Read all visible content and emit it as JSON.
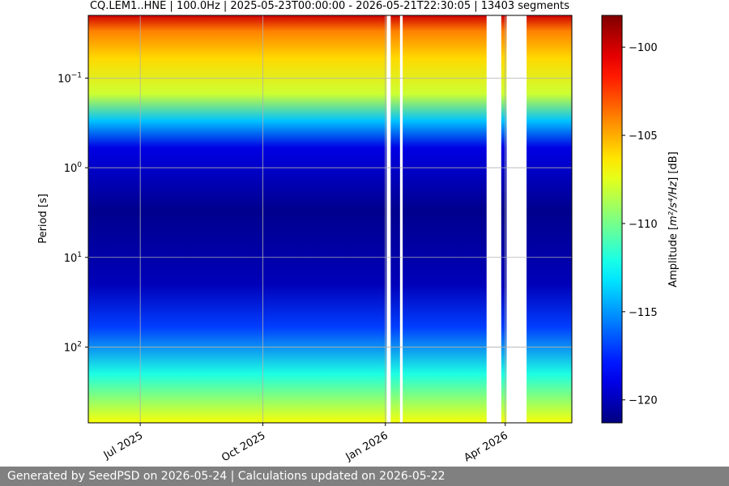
{
  "chart_data": {
    "type": "heatmap",
    "title": "CQ.LEM1..HNE | 100.0Hz | 2025-05-23T00:00:00 - 2026-05-21T22:30:05 | 13403 segments",
    "ylabel": "Period [s]",
    "y_scale": "log",
    "ylim": [
      0.02,
      700
    ],
    "y_ticks": [
      {
        "value": 0.1,
        "base": "10",
        "exp": "−1"
      },
      {
        "value": 1,
        "base": "10",
        "exp": "0"
      },
      {
        "value": 10,
        "base": "10",
        "exp": "1"
      },
      {
        "value": 100,
        "base": "10",
        "exp": "2"
      }
    ],
    "xlim": [
      "2025-05-23",
      "2026-05-21"
    ],
    "x_ticks": [
      {
        "date": "2025-07-01",
        "label": "Jul 2025"
      },
      {
        "date": "2025-10-01",
        "label": "Oct 2025"
      },
      {
        "date": "2026-01-01",
        "label": "Jan 2026"
      },
      {
        "date": "2026-04-01",
        "label": "Apr 2026"
      }
    ],
    "grid": true,
    "colormap": "jet",
    "colorbar": {
      "label_prefix": "Amplitude [",
      "label_units": "m²/s⁴/Hz",
      "label_suffix": "] [dB]",
      "range": [
        -121.3,
        -98.2
      ],
      "ticks": [
        -100,
        -105,
        -110,
        -115,
        -120
      ]
    },
    "data_gaps": [
      {
        "start": "2026-01-02",
        "end": "2026-01-05"
      },
      {
        "start": "2026-01-12",
        "end": "2026-01-14"
      },
      {
        "start": "2026-03-18",
        "end": "2026-03-29"
      },
      {
        "start": "2026-04-02",
        "end": "2026-04-17"
      }
    ],
    "amplitude_profile": [
      {
        "period": 0.02,
        "db": -100
      },
      {
        "period": 0.03,
        "db": -104
      },
      {
        "period": 0.06,
        "db": -106
      },
      {
        "period": 0.15,
        "db": -108
      },
      {
        "period": 0.3,
        "db": -114
      },
      {
        "period": 0.6,
        "db": -119
      },
      {
        "period": 3,
        "db": -121
      },
      {
        "period": 20,
        "db": -120
      },
      {
        "period": 60,
        "db": -117
      },
      {
        "period": 200,
        "db": -112
      },
      {
        "period": 700,
        "db": -107
      }
    ]
  },
  "footer": {
    "text": "Generated by SeedPSD on 2026-05-24 | Calculations updated on 2026-05-22"
  }
}
